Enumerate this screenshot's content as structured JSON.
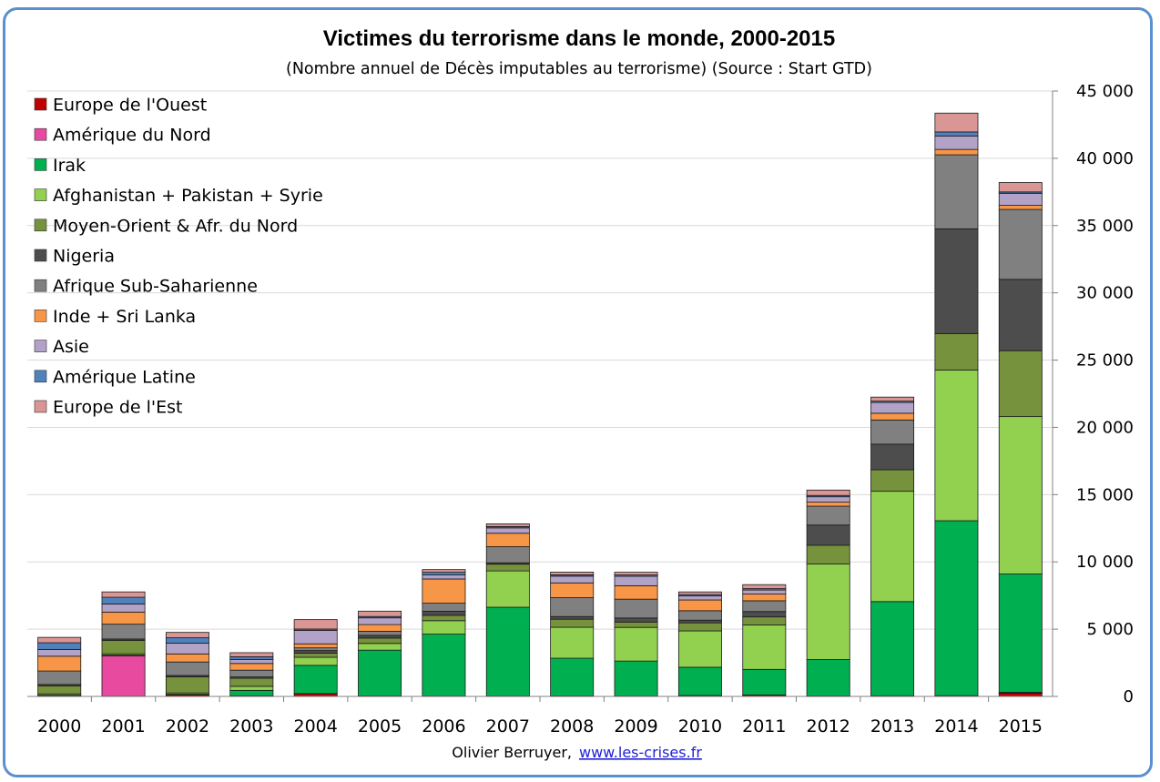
{
  "chart_data": {
    "type": "bar",
    "stacked": true,
    "title": "Victimes du terrorisme dans le monde, 2000-2015",
    "subtitle": "(Nombre annuel de Décès imputables au terrorisme) (Source : Start GTD)",
    "categories": [
      "2000",
      "2001",
      "2002",
      "2003",
      "2004",
      "2005",
      "2006",
      "2007",
      "2008",
      "2009",
      "2010",
      "2011",
      "2012",
      "2013",
      "2014",
      "2015"
    ],
    "ylim": [
      0,
      45000
    ],
    "yticks": [
      {
        "value": 0,
        "label": "0"
      },
      {
        "value": 5000,
        "label": "5 000"
      },
      {
        "value": 10000,
        "label": "10 000"
      },
      {
        "value": 15000,
        "label": "15 000"
      },
      {
        "value": 20000,
        "label": "20 000"
      },
      {
        "value": 25000,
        "label": "25 000"
      },
      {
        "value": 30000,
        "label": "30 000"
      },
      {
        "value": 35000,
        "label": "35 000"
      },
      {
        "value": 40000,
        "label": "40 000"
      },
      {
        "value": 45000,
        "label": "45 000"
      }
    ],
    "y_axis_position": "right",
    "grid": true,
    "legend_position": "top-left",
    "series": [
      {
        "name": "Europe de l'Ouest",
        "color": "#c00000",
        "values": [
          30,
          20,
          100,
          40,
          200,
          30,
          20,
          20,
          30,
          20,
          30,
          100,
          20,
          20,
          30,
          250
        ]
      },
      {
        "name": "Amérique du Nord",
        "color": "#e84aa0",
        "values": [
          10,
          3000,
          10,
          10,
          10,
          10,
          10,
          10,
          10,
          10,
          40,
          10,
          20,
          30,
          30,
          50
        ]
      },
      {
        "name": "Irak",
        "color": "#00b050",
        "values": [
          50,
          50,
          50,
          400,
          2100,
          3400,
          4600,
          6600,
          2800,
          2600,
          2100,
          1900,
          2700,
          7000,
          13000,
          8800
        ]
      },
      {
        "name": "Afghanistan + Pakistan + Syrie",
        "color": "#92d050",
        "values": [
          100,
          100,
          100,
          300,
          600,
          500,
          1000,
          2700,
          2300,
          2500,
          2700,
          3300,
          7100,
          8200,
          11200,
          11700
        ]
      },
      {
        "name": "Moyen-Orient & Afr. du Nord",
        "color": "#76923c",
        "values": [
          600,
          1000,
          1200,
          600,
          300,
          400,
          400,
          500,
          600,
          400,
          600,
          600,
          1400,
          1600,
          2700,
          4900
        ]
      },
      {
        "name": "Nigeria",
        "color": "#4d4d4d",
        "values": [
          100,
          100,
          100,
          100,
          200,
          200,
          300,
          100,
          200,
          300,
          200,
          400,
          1500,
          1900,
          7800,
          5300
        ]
      },
      {
        "name": "Afrique Sub-Saharienne",
        "color": "#808080",
        "values": [
          1000,
          1100,
          1000,
          500,
          200,
          300,
          600,
          1200,
          1400,
          1400,
          700,
          800,
          1400,
          1800,
          5500,
          5200
        ]
      },
      {
        "name": "Inde + Sri Lanka",
        "color": "#f79646",
        "values": [
          1100,
          900,
          600,
          500,
          300,
          500,
          1800,
          1000,
          1100,
          1000,
          800,
          500,
          300,
          500,
          400,
          300
        ]
      },
      {
        "name": "Asie",
        "color": "#b3a2c7",
        "values": [
          500,
          600,
          800,
          300,
          1000,
          500,
          300,
          400,
          500,
          700,
          300,
          300,
          400,
          800,
          1000,
          900
        ]
      },
      {
        "name": "Amérique Latine",
        "color": "#4f81bd",
        "values": [
          500,
          500,
          400,
          200,
          100,
          100,
          200,
          100,
          100,
          100,
          100,
          100,
          100,
          100,
          300,
          100
        ]
      },
      {
        "name": "Europe de l'Est",
        "color": "#d99694",
        "values": [
          400,
          400,
          400,
          300,
          700,
          400,
          200,
          200,
          200,
          200,
          200,
          300,
          400,
          300,
          1400,
          700
        ]
      }
    ]
  },
  "credit": {
    "author": "Olivier Berruyer,",
    "link": "www.les-crises.fr"
  }
}
